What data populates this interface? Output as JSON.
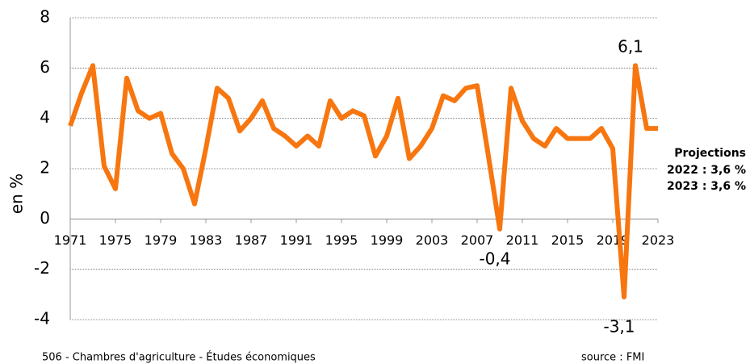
{
  "chart_data": {
    "type": "line",
    "y_label": "en %",
    "x": [
      1971,
      1972,
      1973,
      1974,
      1975,
      1976,
      1977,
      1978,
      1979,
      1980,
      1981,
      1982,
      1983,
      1984,
      1985,
      1986,
      1987,
      1988,
      1989,
      1990,
      1991,
      1992,
      1993,
      1994,
      1995,
      1996,
      1997,
      1998,
      1999,
      2000,
      2001,
      2002,
      2003,
      2004,
      2005,
      2006,
      2007,
      2008,
      2009,
      2010,
      2011,
      2012,
      2013,
      2014,
      2015,
      2016,
      2017,
      2018,
      2019,
      2020,
      2021,
      2022,
      2023
    ],
    "series": [
      {
        "color": "#f7760f",
        "values": [
          3.7,
          5.0,
          6.1,
          2.1,
          1.2,
          5.6,
          4.3,
          4.0,
          4.2,
          2.6,
          2.0,
          0.6,
          2.8,
          5.2,
          4.8,
          3.5,
          4.0,
          4.7,
          3.6,
          3.3,
          2.9,
          3.3,
          2.9,
          4.7,
          4.0,
          4.3,
          4.1,
          2.5,
          3.3,
          4.8,
          2.4,
          2.9,
          3.6,
          4.9,
          4.7,
          5.2,
          5.3,
          2.5,
          -0.4,
          5.2,
          3.9,
          3.2,
          2.9,
          3.6,
          3.2,
          3.2,
          3.2,
          3.6,
          2.8,
          -3.1,
          6.1,
          3.6,
          3.6
        ],
        "value_labels": [
          null,
          null,
          null,
          null,
          null,
          null,
          null,
          null,
          null,
          null,
          null,
          null,
          null,
          null,
          null,
          null,
          null,
          null,
          null,
          null,
          null,
          null,
          null,
          null,
          null,
          null,
          null,
          null,
          null,
          null,
          null,
          null,
          null,
          null,
          null,
          null,
          null,
          null,
          "-0,4",
          null,
          null,
          null,
          null,
          null,
          null,
          null,
          null,
          null,
          null,
          "-3,1",
          "6,1",
          null,
          null
        ]
      }
    ],
    "xlim": [
      1971,
      2023
    ],
    "xticks": [
      1971,
      1975,
      1979,
      1983,
      1987,
      1991,
      1995,
      1999,
      2003,
      2007,
      2011,
      2015,
      2019,
      2023
    ],
    "ylim": [
      -4,
      8
    ],
    "yticks": [
      -4,
      -2,
      0,
      2,
      4,
      6,
      8
    ],
    "grid": true,
    "annotations": [
      "Projections",
      "2022 : 3,6 %",
      "2023 : 3,6 %"
    ],
    "footer_left": "506 - Chambres d'agriculture - Études économiques",
    "footer_right": "source : FMI"
  }
}
